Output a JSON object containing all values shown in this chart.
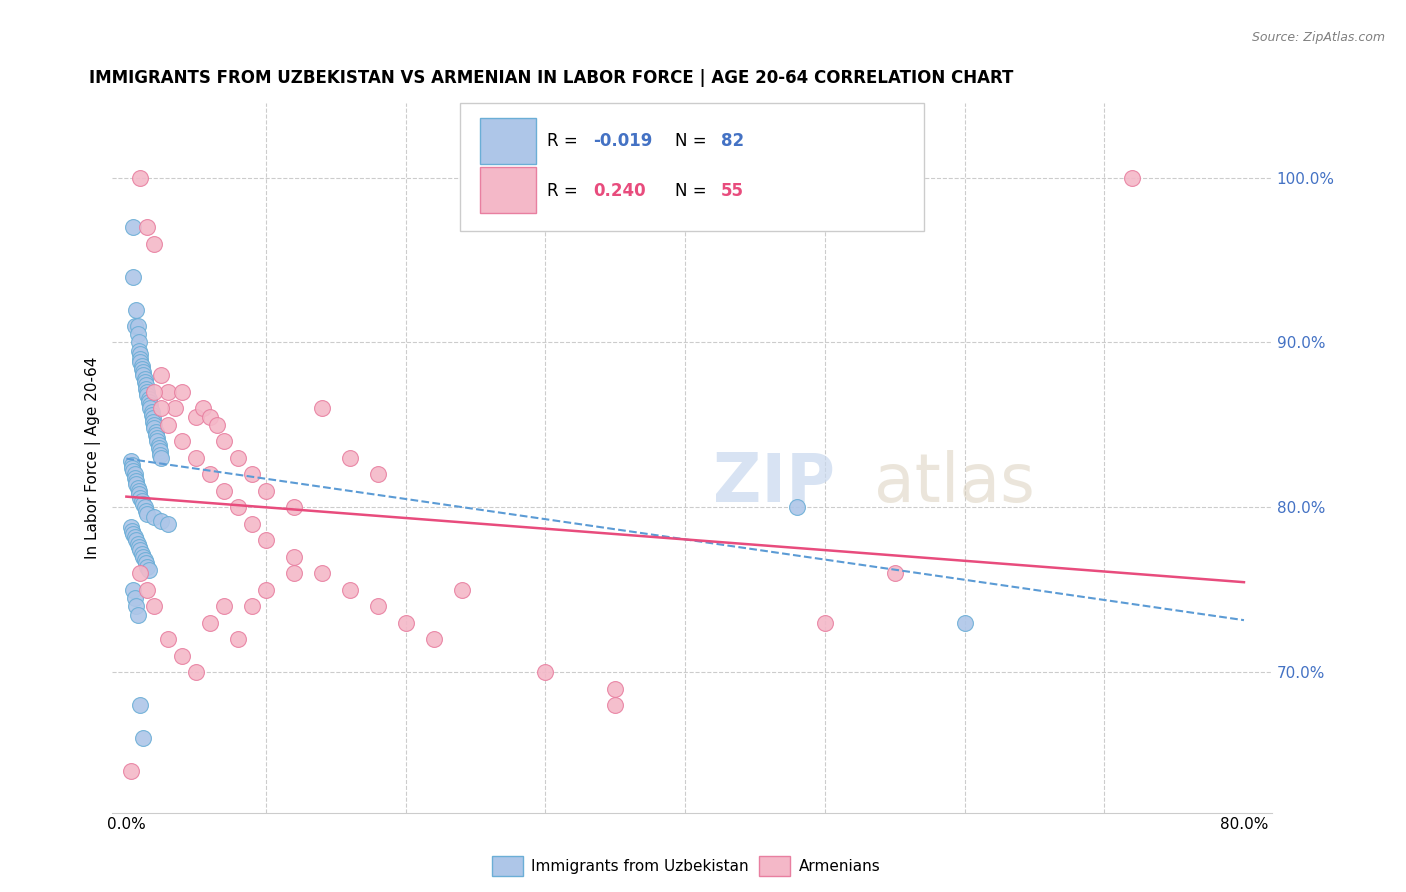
{
  "title": "IMMIGRANTS FROM UZBEKISTAN VS ARMENIAN IN LABOR FORCE | AGE 20-64 CORRELATION CHART",
  "source": "Source: ZipAtlas.com",
  "xlabel_blue": "Immigrants from Uzbekistan",
  "xlabel_pink": "Armenians",
  "ylabel": "In Labor Force | Age 20-64",
  "blue_R": "-0.019",
  "blue_N": "82",
  "pink_R": "0.240",
  "pink_N": "55",
  "blue_color": "#aec6e8",
  "blue_edge_color": "#6baed6",
  "pink_color": "#f4b8c8",
  "pink_edge_color": "#e87fa0",
  "trend_blue_color": "#5b9bd5",
  "trend_pink_color": "#e84c7d",
  "grid_color": "#cccccc",
  "blue_scatter_x": [
    0.005,
    0.005,
    0.006,
    0.007,
    0.008,
    0.008,
    0.009,
    0.009,
    0.01,
    0.01,
    0.01,
    0.011,
    0.011,
    0.012,
    0.012,
    0.013,
    0.013,
    0.014,
    0.014,
    0.015,
    0.015,
    0.016,
    0.016,
    0.017,
    0.017,
    0.018,
    0.018,
    0.019,
    0.019,
    0.02,
    0.02,
    0.021,
    0.021,
    0.022,
    0.022,
    0.023,
    0.023,
    0.024,
    0.024,
    0.025,
    0.003,
    0.004,
    0.004,
    0.005,
    0.006,
    0.006,
    0.007,
    0.007,
    0.008,
    0.009,
    0.009,
    0.01,
    0.011,
    0.012,
    0.013,
    0.014,
    0.015,
    0.02,
    0.025,
    0.03,
    0.003,
    0.004,
    0.005,
    0.006,
    0.007,
    0.008,
    0.009,
    0.01,
    0.011,
    0.012,
    0.013,
    0.014,
    0.015,
    0.016,
    0.005,
    0.006,
    0.007,
    0.008,
    0.48,
    0.6,
    0.01,
    0.012
  ],
  "blue_scatter_y": [
    0.97,
    0.94,
    0.91,
    0.92,
    0.91,
    0.905,
    0.9,
    0.895,
    0.893,
    0.89,
    0.888,
    0.886,
    0.884,
    0.882,
    0.88,
    0.878,
    0.876,
    0.874,
    0.872,
    0.87,
    0.868,
    0.866,
    0.864,
    0.862,
    0.86,
    0.858,
    0.856,
    0.854,
    0.852,
    0.85,
    0.848,
    0.846,
    0.844,
    0.842,
    0.84,
    0.838,
    0.836,
    0.834,
    0.832,
    0.83,
    0.828,
    0.826,
    0.824,
    0.822,
    0.82,
    0.818,
    0.816,
    0.814,
    0.812,
    0.81,
    0.808,
    0.806,
    0.804,
    0.802,
    0.8,
    0.798,
    0.796,
    0.794,
    0.792,
    0.79,
    0.788,
    0.786,
    0.784,
    0.782,
    0.78,
    0.778,
    0.776,
    0.774,
    0.772,
    0.77,
    0.768,
    0.766,
    0.764,
    0.762,
    0.75,
    0.745,
    0.74,
    0.735,
    0.8,
    0.73,
    0.68,
    0.66
  ],
  "pink_scatter_x": [
    0.003,
    0.01,
    0.015,
    0.02,
    0.025,
    0.03,
    0.035,
    0.04,
    0.05,
    0.055,
    0.06,
    0.065,
    0.07,
    0.08,
    0.09,
    0.1,
    0.12,
    0.14,
    0.16,
    0.18,
    0.02,
    0.025,
    0.03,
    0.04,
    0.05,
    0.06,
    0.07,
    0.08,
    0.09,
    0.1,
    0.12,
    0.14,
    0.16,
    0.18,
    0.2,
    0.22,
    0.24,
    0.3,
    0.35,
    0.5,
    0.01,
    0.015,
    0.02,
    0.03,
    0.04,
    0.05,
    0.06,
    0.07,
    0.08,
    0.09,
    0.1,
    0.12,
    0.35,
    0.55,
    0.72
  ],
  "pink_scatter_y": [
    0.64,
    1.0,
    0.97,
    0.96,
    0.88,
    0.87,
    0.86,
    0.87,
    0.855,
    0.86,
    0.855,
    0.85,
    0.84,
    0.83,
    0.82,
    0.81,
    0.8,
    0.86,
    0.83,
    0.82,
    0.87,
    0.86,
    0.85,
    0.84,
    0.83,
    0.82,
    0.81,
    0.8,
    0.79,
    0.78,
    0.77,
    0.76,
    0.75,
    0.74,
    0.73,
    0.72,
    0.75,
    0.7,
    0.69,
    0.73,
    0.76,
    0.75,
    0.74,
    0.72,
    0.71,
    0.7,
    0.73,
    0.74,
    0.72,
    0.74,
    0.75,
    0.76,
    0.68,
    0.76,
    1.0
  ]
}
